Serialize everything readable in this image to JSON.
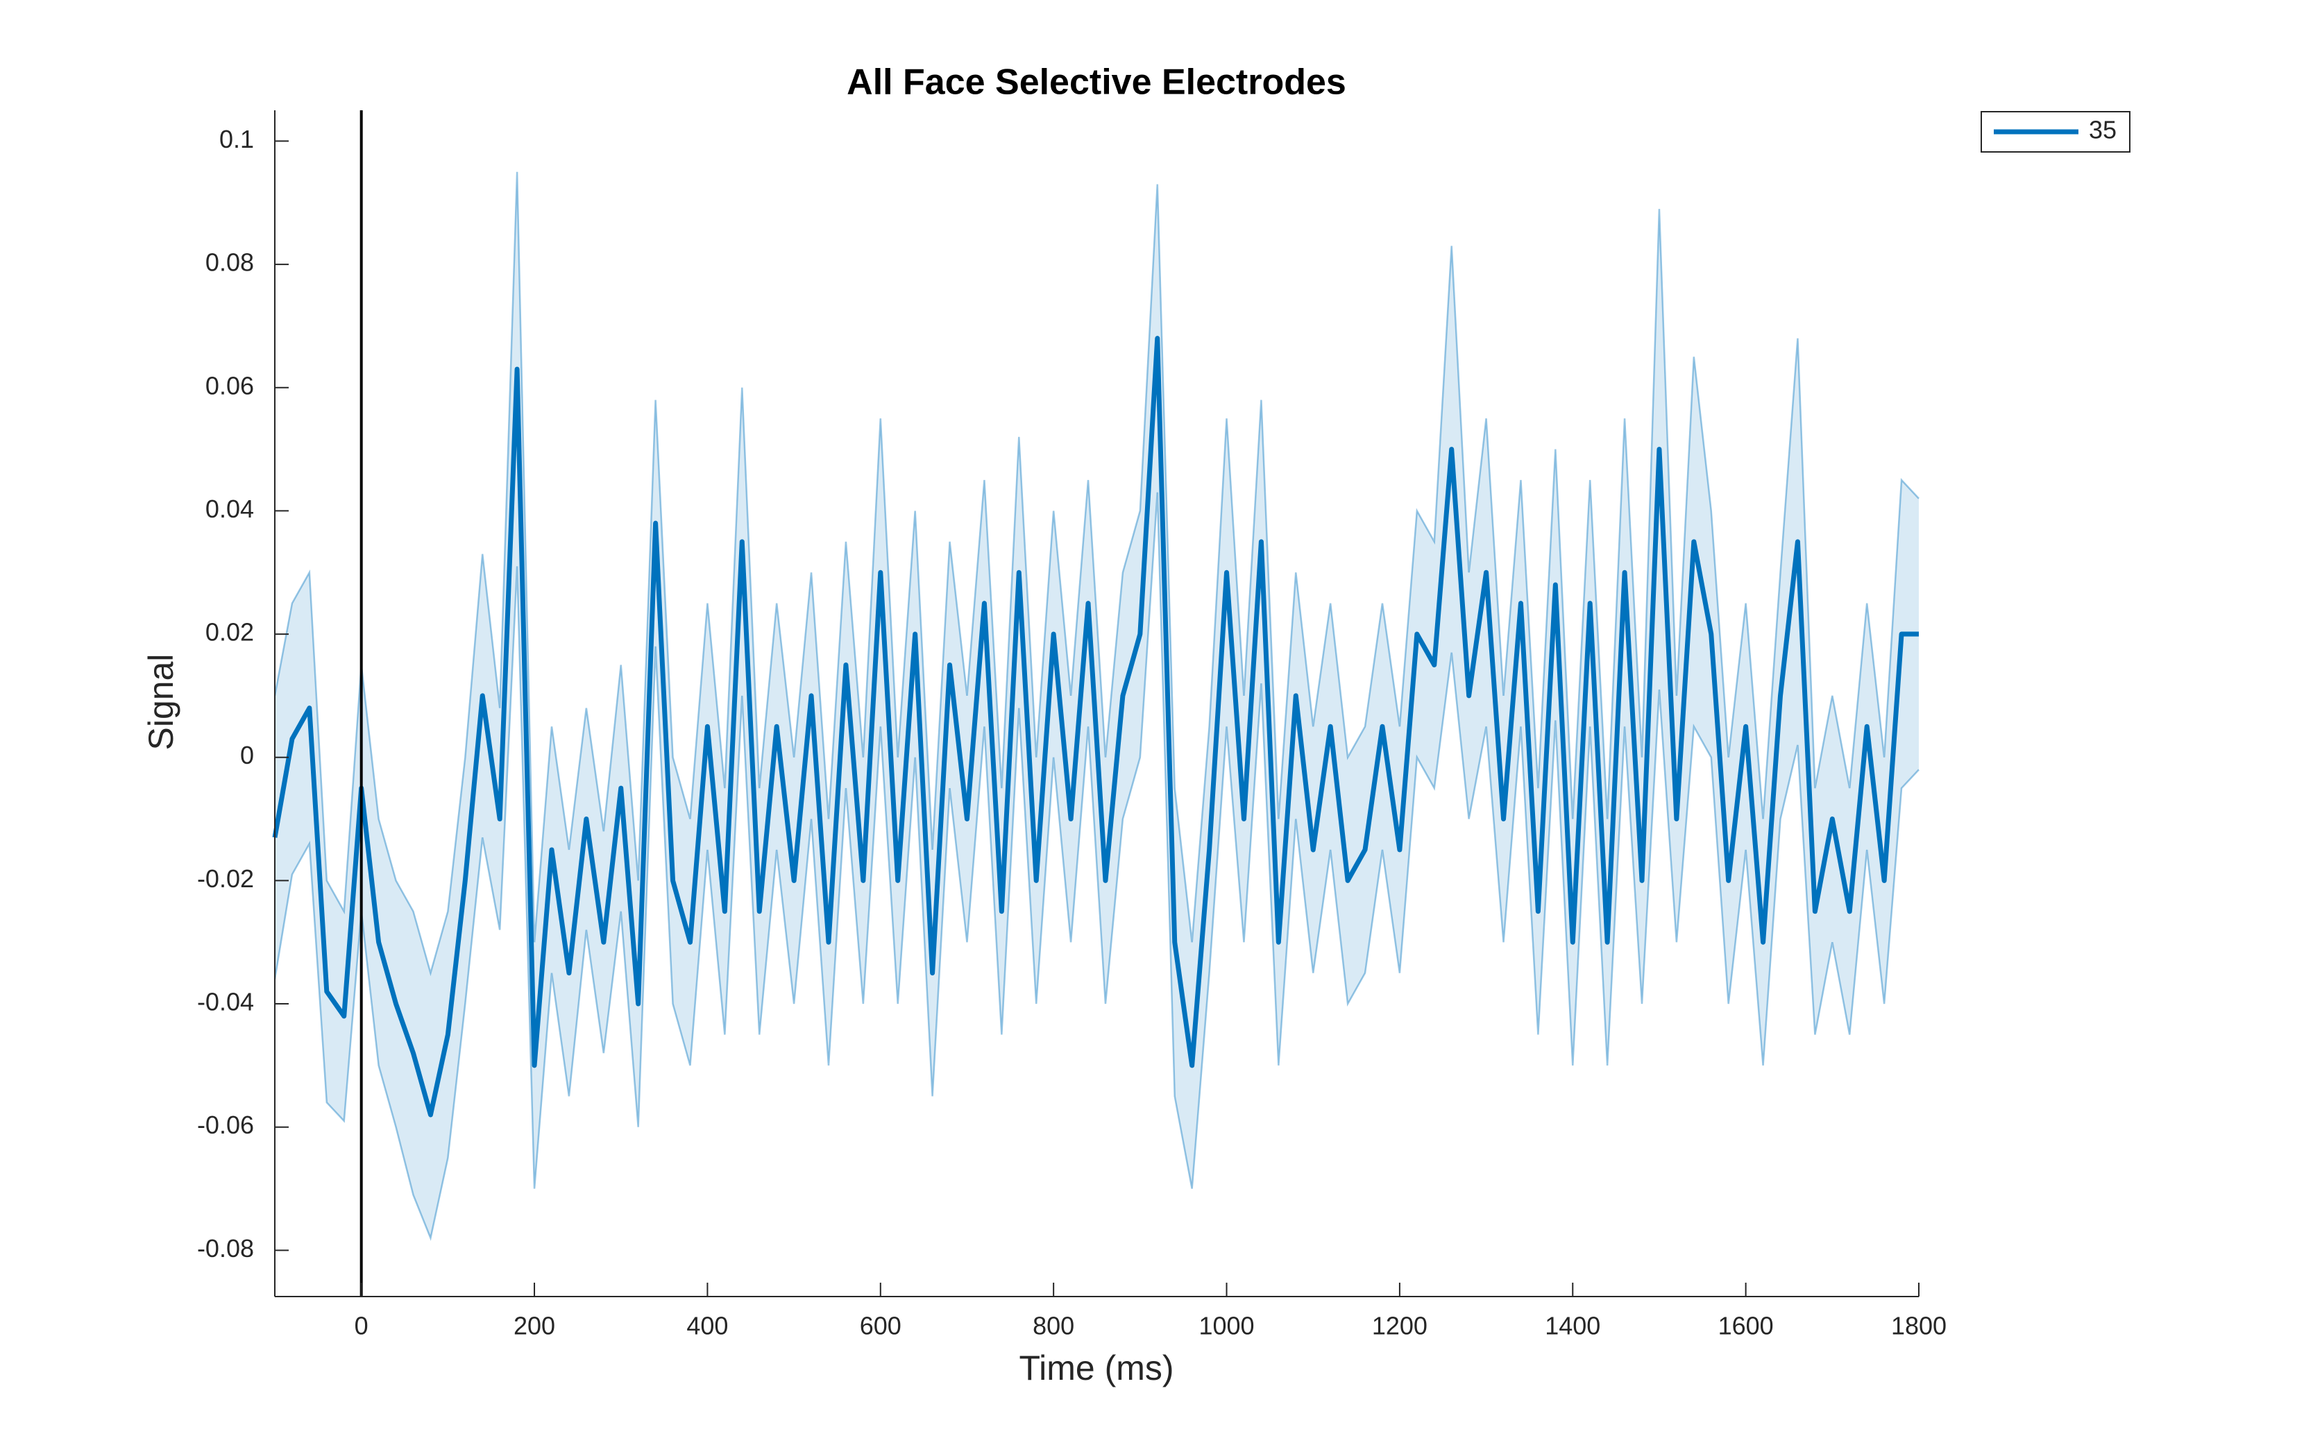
{
  "chart_data": {
    "type": "line",
    "title": "All Face Selective Electrodes",
    "x_label": "Time (ms)",
    "y_label": "Signal",
    "x": [
      -100,
      -80,
      -60,
      -40,
      -20,
      0,
      20,
      40,
      60,
      80,
      100,
      120,
      140,
      160,
      180,
      200,
      220,
      240,
      260,
      280,
      300,
      320,
      340,
      360,
      380,
      400,
      420,
      440,
      460,
      480,
      500,
      520,
      540,
      560,
      580,
      600,
      620,
      640,
      660,
      680,
      700,
      720,
      740,
      760,
      780,
      800,
      820,
      840,
      860,
      880,
      900,
      920,
      940,
      960,
      980,
      1000,
      1020,
      1040,
      1060,
      1080,
      1100,
      1120,
      1140,
      1160,
      1180,
      1200,
      1220,
      1240,
      1260,
      1280,
      1300,
      1320,
      1340,
      1360,
      1380,
      1400,
      1420,
      1440,
      1460,
      1480,
      1500,
      1520,
      1540,
      1560,
      1580,
      1600,
      1620,
      1640,
      1660,
      1680,
      1700,
      1720,
      1740,
      1760,
      1780,
      1800
    ],
    "series": [
      {
        "name": "35",
        "color": "#0072bd",
        "band_color": "#0072bd",
        "values": [
          -0.013,
          0.003,
          0.008,
          -0.038,
          -0.042,
          -0.005,
          -0.03,
          -0.04,
          -0.048,
          -0.058,
          -0.045,
          -0.02,
          0.01,
          -0.01,
          0.063,
          -0.05,
          -0.015,
          -0.035,
          -0.01,
          -0.03,
          -0.005,
          -0.04,
          0.038,
          -0.02,
          -0.03,
          0.005,
          -0.025,
          0.035,
          -0.025,
          0.005,
          -0.02,
          0.01,
          -0.03,
          0.015,
          -0.02,
          0.03,
          -0.02,
          0.02,
          -0.035,
          0.015,
          -0.01,
          0.025,
          -0.025,
          0.03,
          -0.02,
          0.02,
          -0.01,
          0.025,
          -0.02,
          0.01,
          0.02,
          0.068,
          -0.03,
          -0.05,
          -0.015,
          0.03,
          -0.01,
          0.035,
          -0.03,
          0.01,
          -0.015,
          0.005,
          -0.02,
          -0.015,
          0.005,
          -0.015,
          0.02,
          0.015,
          0.05,
          0.01,
          0.03,
          -0.01,
          0.025,
          -0.025,
          0.028,
          -0.03,
          0.025,
          -0.03,
          0.03,
          -0.02,
          0.05,
          -0.01,
          0.035,
          0.02,
          -0.02,
          0.005,
          -0.03,
          0.01,
          0.035,
          -0.025,
          -0.01,
          -0.025,
          0.005,
          -0.02,
          0.02,
          0.02
        ],
        "upper": [
          0.01,
          0.025,
          0.03,
          -0.02,
          -0.025,
          0.015,
          -0.01,
          -0.02,
          -0.025,
          -0.035,
          -0.025,
          0.0,
          0.033,
          0.008,
          0.095,
          -0.03,
          0.005,
          -0.015,
          0.008,
          -0.012,
          0.015,
          -0.02,
          0.058,
          0.0,
          -0.01,
          0.025,
          -0.005,
          0.06,
          -0.005,
          0.025,
          0.0,
          0.03,
          -0.01,
          0.035,
          0.0,
          0.055,
          0.0,
          0.04,
          -0.015,
          0.035,
          0.01,
          0.045,
          -0.005,
          0.052,
          0.0,
          0.04,
          0.01,
          0.045,
          0.0,
          0.03,
          0.04,
          0.093,
          -0.005,
          -0.03,
          0.005,
          0.055,
          0.01,
          0.058,
          -0.01,
          0.03,
          0.005,
          0.025,
          0.0,
          0.005,
          0.025,
          0.005,
          0.04,
          0.035,
          0.083,
          0.03,
          0.055,
          0.01,
          0.045,
          -0.005,
          0.05,
          -0.01,
          0.045,
          -0.01,
          0.055,
          0.0,
          0.089,
          0.01,
          0.065,
          0.04,
          0.0,
          0.025,
          -0.01,
          0.03,
          0.068,
          -0.005,
          0.01,
          -0.005,
          0.025,
          0.0,
          0.045,
          0.042
        ],
        "lower": [
          -0.036,
          -0.019,
          -0.014,
          -0.056,
          -0.059,
          -0.025,
          -0.05,
          -0.06,
          -0.071,
          -0.078,
          -0.065,
          -0.04,
          -0.013,
          -0.028,
          0.031,
          -0.07,
          -0.035,
          -0.055,
          -0.028,
          -0.048,
          -0.025,
          -0.06,
          0.018,
          -0.04,
          -0.05,
          -0.015,
          -0.045,
          0.01,
          -0.045,
          -0.015,
          -0.04,
          -0.01,
          -0.05,
          -0.005,
          -0.04,
          0.005,
          -0.04,
          0.0,
          -0.055,
          -0.005,
          -0.03,
          0.005,
          -0.045,
          0.008,
          -0.04,
          0.0,
          -0.03,
          0.005,
          -0.04,
          -0.01,
          0.0,
          0.043,
          -0.055,
          -0.07,
          -0.035,
          0.005,
          -0.03,
          0.012,
          -0.05,
          -0.01,
          -0.035,
          -0.015,
          -0.04,
          -0.035,
          -0.015,
          -0.035,
          0.0,
          -0.005,
          0.017,
          -0.01,
          0.005,
          -0.03,
          0.005,
          -0.045,
          0.006,
          -0.05,
          0.005,
          -0.05,
          0.005,
          -0.04,
          0.011,
          -0.03,
          0.005,
          0.0,
          -0.04,
          -0.015,
          -0.05,
          -0.01,
          0.002,
          -0.045,
          -0.03,
          -0.045,
          -0.015,
          -0.04,
          -0.005,
          -0.002
        ]
      }
    ],
    "xlim": [
      -100,
      1800
    ],
    "ylim": [
      -0.0875,
      0.105
    ],
    "xticks": [
      0,
      200,
      400,
      600,
      800,
      1000,
      1200,
      1400,
      1600,
      1800
    ],
    "yticks": [
      -0.08,
      -0.06,
      -0.04,
      -0.02,
      0,
      0.02,
      0.04,
      0.06,
      0.08,
      0.1
    ],
    "vline": 0,
    "legend": "upper-right",
    "grid": false
  }
}
